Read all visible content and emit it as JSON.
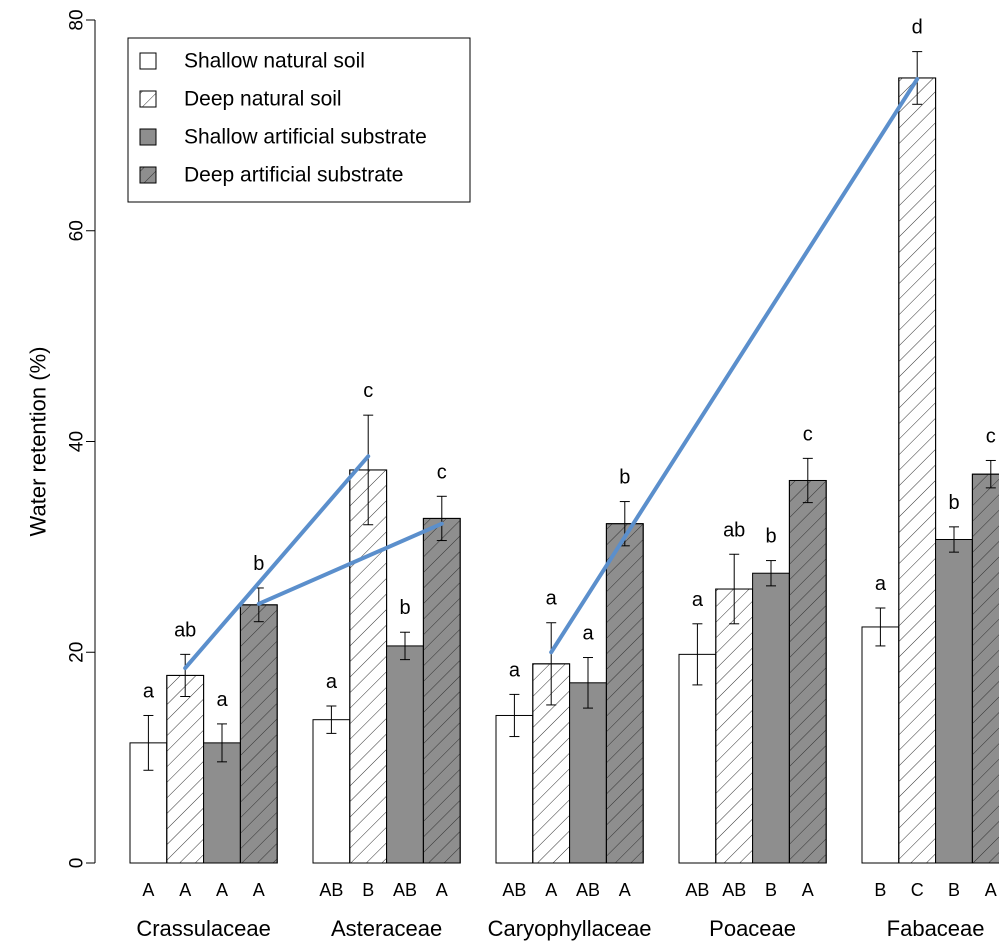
{
  "chart_data": {
    "type": "bar",
    "title": "",
    "ylabel": "Water retention (%)",
    "xlabel": "",
    "ylim": [
      0,
      80
    ],
    "yticks": [
      0,
      20,
      40,
      60,
      80
    ],
    "grid": false,
    "legend_position": "top-left",
    "categories": [
      "Crassulaceae",
      "Asteraceae",
      "Caryophyllaceae",
      "Poaceae",
      "Fabaceae"
    ],
    "series": [
      {
        "name": "Shallow natural soil",
        "fill": "#ffffff",
        "hatch": false,
        "values": [
          11.4,
          13.6,
          14.0,
          19.8,
          22.4
        ],
        "err": [
          2.6,
          1.3,
          2.0,
          2.9,
          1.8
        ],
        "sig_letters": [
          "a",
          "a",
          "a",
          "a",
          "a"
        ],
        "bottom_letters": [
          "A",
          "AB",
          "AB",
          "AB",
          "B"
        ]
      },
      {
        "name": "Deep natural soil",
        "fill": "#ffffff",
        "hatch": true,
        "values": [
          17.8,
          37.3,
          18.9,
          26.0,
          74.5
        ],
        "err": [
          2.0,
          5.2,
          3.9,
          3.3,
          2.5
        ],
        "sig_letters": [
          "ab",
          "c",
          "a",
          "ab",
          "d"
        ],
        "bottom_letters": [
          "A",
          "B",
          "A",
          "AB",
          "C"
        ]
      },
      {
        "name": "Shallow artificial substrate",
        "fill": "#8e8e8e",
        "hatch": false,
        "values": [
          11.4,
          20.6,
          17.1,
          27.5,
          30.7
        ],
        "err": [
          1.8,
          1.3,
          2.4,
          1.2,
          1.2
        ],
        "sig_letters": [
          "a",
          "b",
          "a",
          "b",
          "b"
        ],
        "bottom_letters": [
          "A",
          "AB",
          "AB",
          "B",
          "B"
        ]
      },
      {
        "name": "Deep artificial substrate",
        "fill": "#8e8e8e",
        "hatch": true,
        "values": [
          24.5,
          32.7,
          32.2,
          36.3,
          36.9
        ],
        "err": [
          1.6,
          2.1,
          2.1,
          2.1,
          1.3
        ],
        "sig_letters": [
          "b",
          "c",
          "b",
          "c",
          "c"
        ],
        "bottom_letters": [
          "A",
          "A",
          "A",
          "A",
          "A"
        ]
      }
    ],
    "annotation_lines": {
      "color": "#5b8fcc",
      "segments": [
        {
          "from": {
            "category": "Crassulaceae",
            "series": 1,
            "y": 18.5
          },
          "to": {
            "category": "Asteraceae",
            "series": 1,
            "y": 38.6
          }
        },
        {
          "from": {
            "category": "Crassulaceae",
            "series": 3,
            "y": 24.6
          },
          "to": {
            "category": "Asteraceae",
            "series": 3,
            "y": 32.2
          }
        },
        {
          "from": {
            "category": "Caryophyllaceae",
            "series": 1,
            "y": 20.0
          },
          "to": {
            "category": "Fabaceae",
            "series": 1,
            "y": 74.4
          }
        }
      ]
    }
  }
}
